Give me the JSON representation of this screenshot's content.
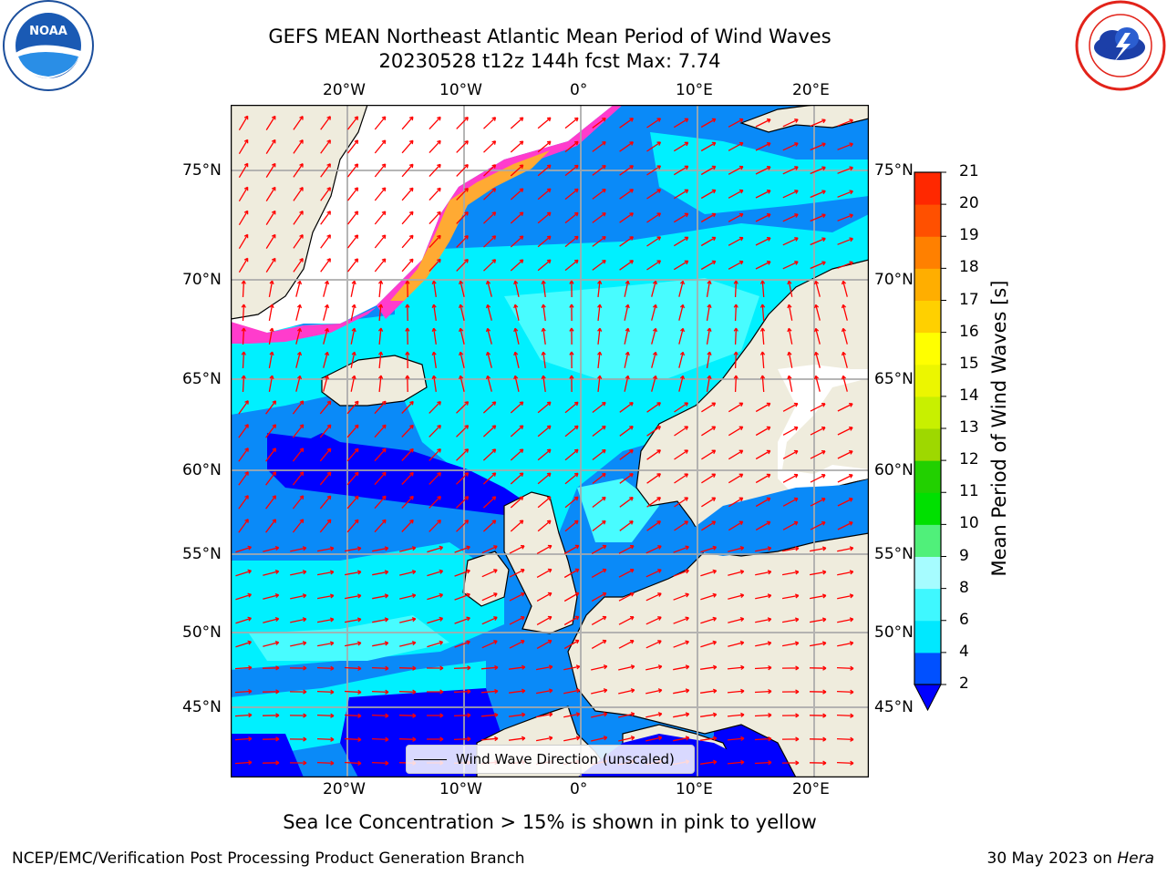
{
  "header": {
    "title_line1": "GEFS MEAN Northeast Atlantic Mean Period of Wind Waves",
    "title_line2": "20230528 t12z 144h fcst   Max: 7.74"
  },
  "logos": {
    "left": {
      "text": "NOAA",
      "icon": "noaa-logo-icon"
    },
    "right": {
      "icon": "nws-logo-icon"
    }
  },
  "axes": {
    "lon_top": [
      "20°W",
      "10°W",
      "0°",
      "10°E",
      "20°E"
    ],
    "lon_bottom": [
      "20°W",
      "10°W",
      "0°",
      "10°E",
      "20°E"
    ],
    "lat_left": [
      "75°N",
      "70°N",
      "65°N",
      "60°N",
      "55°N",
      "50°N",
      "45°N"
    ],
    "lat_right": [
      "75°N",
      "70°N",
      "65°N",
      "60°N",
      "55°N",
      "50°N",
      "45°N"
    ]
  },
  "legend": {
    "label": "Wind Wave Direction (unscaled)"
  },
  "colorbar": {
    "label": "Mean Period of Wind Waves [s]",
    "ticks": [
      "2",
      "4",
      "6",
      "8",
      "9",
      "10",
      "11",
      "12",
      "13",
      "14",
      "15",
      "16",
      "17",
      "18",
      "19",
      "20",
      "21"
    ],
    "colors": [
      "#0050ff",
      "#00e8ff",
      "#3ff8ff",
      "#a6fcff",
      "#50f07a",
      "#00e000",
      "#22d000",
      "#9ed800",
      "#c8f000",
      "#ecf600",
      "#ffff00",
      "#ffd000",
      "#ffae00",
      "#ff8000",
      "#ff5000",
      "#ff2800",
      "#ff0000"
    ],
    "under_color": "#0000ff"
  },
  "map_colors": {
    "land": "#efecdd",
    "ice_open": "#ffffff",
    "ocean_level2": "#0000ff",
    "ocean_level3": "#0a8af8",
    "ocean_level5": "#00f0ff",
    "ocean_level6": "#48fcff",
    "ice_edge": "#ff3ccc",
    "ice_edge2": "#ffaa33",
    "arrow": "#ff0000"
  },
  "caption": "Sea Ice Concentration > 15% is shown in pink to yellow",
  "footer": {
    "left": "NCEP/EMC/Verification Post Processing Product Generation Branch",
    "right_date": "30 May 2023 on ",
    "right_machine": "Hera"
  }
}
